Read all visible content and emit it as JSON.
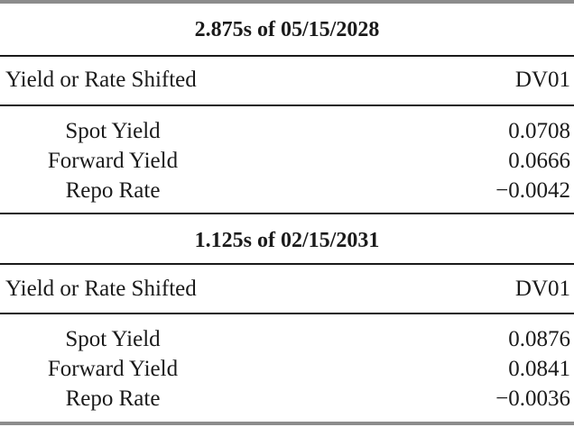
{
  "sections": [
    {
      "title": "2.875s of 05/15/2028",
      "header": {
        "col1": "Yield or Rate Shifted",
        "col2": "DV01"
      },
      "rows": [
        {
          "label": "Spot Yield",
          "value": "0.0708"
        },
        {
          "label": "Forward Yield",
          "value": "0.0666"
        },
        {
          "label": "Repo Rate",
          "value": "−0.0042"
        }
      ]
    },
    {
      "title": "1.125s of 02/15/2031",
      "header": {
        "col1": "Yield or Rate Shifted",
        "col2": "DV01"
      },
      "rows": [
        {
          "label": "Spot Yield",
          "value": "0.0876"
        },
        {
          "label": "Forward Yield",
          "value": "0.0841"
        },
        {
          "label": "Repo Rate",
          "value": "−0.0036"
        }
      ]
    }
  ]
}
